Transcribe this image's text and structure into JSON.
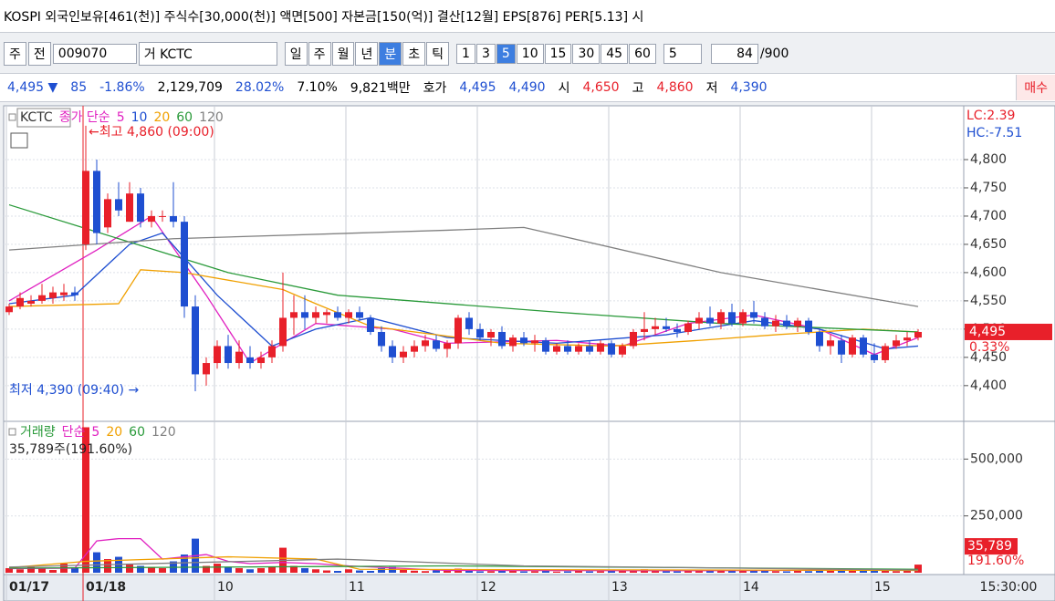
{
  "header": {
    "title": "KOSPI 외국인보유[461(천)] 주식수[30,000(천)] 액면[500] 자본금[150(억)] 결산[12월] EPS[876] PER[5.13] 시"
  },
  "toolbar": {
    "period": "주",
    "prev": "전",
    "code": "009070",
    "name": "거 KCTC",
    "units": [
      "일",
      "주",
      "월",
      "년",
      "분",
      "초",
      "틱"
    ],
    "minutes": [
      "1",
      "3",
      "5",
      "10",
      "15",
      "30",
      "45",
      "60"
    ],
    "step": "5",
    "count": "84",
    "total": "/900"
  },
  "quote": {
    "price": "4,495 ▼",
    "change": "85",
    "change_pct": "-1.86%",
    "volume": "2,129,709",
    "turnover": "28.02%",
    "ratio": "7.10%",
    "amount": "9,821백만",
    "bid_label": "호가",
    "ask": "4,495",
    "bid": "4,490",
    "open_label": "시",
    "open": "4,650",
    "high_label": "고",
    "high": "4,860",
    "low_label": "저",
    "low": "4,390",
    "buy": "매수"
  },
  "chart_data": [
    {
      "type": "candlestick",
      "name": "KCTC",
      "indicator": "종가 단순",
      "open": [
        4530,
        4540,
        4545,
        4550,
        4555,
        4560,
        4565,
        4650,
        4780,
        4680,
        4730,
        4690,
        4740,
        4690,
        4700,
        4700,
        4690,
        4540,
        4420,
        4440,
        4470,
        4440,
        4450,
        4440,
        4450,
        4470,
        4520,
        4530,
        4520,
        4525,
        4530,
        4520,
        4530,
        4520,
        4495,
        4470,
        4450,
        4460,
        4470,
        4480,
        4465,
        4475,
        4520,
        4500,
        4485,
        4495,
        4470,
        4485,
        4475,
        4480,
        4460,
        4470,
        4460,
        4470,
        4460,
        4475,
        4455,
        4470,
        4495,
        4500,
        4505,
        4500,
        4495,
        4510,
        4520,
        4510,
        4530,
        4510,
        4530,
        4520,
        4505,
        4515,
        4505,
        4515,
        4495,
        4470,
        4480,
        4455,
        4485,
        4455,
        4445,
        4470,
        4480,
        4485
      ],
      "high": [
        4545,
        4565,
        4560,
        4580,
        4575,
        4580,
        4575,
        4860,
        4800,
        4740,
        4760,
        4760,
        4750,
        4710,
        4710,
        4760,
        4700,
        4560,
        4450,
        4480,
        4490,
        4480,
        4470,
        4460,
        4480,
        4600,
        4560,
        4560,
        4540,
        4535,
        4540,
        4535,
        4540,
        4525,
        4505,
        4480,
        4470,
        4480,
        4490,
        4490,
        4480,
        4525,
        4530,
        4510,
        4500,
        4505,
        4490,
        4495,
        4490,
        4485,
        4475,
        4480,
        4475,
        4480,
        4480,
        4480,
        4475,
        4500,
        4530,
        4520,
        4520,
        4510,
        4515,
        4530,
        4540,
        4535,
        4545,
        4535,
        4550,
        4530,
        4525,
        4525,
        4520,
        4520,
        4500,
        4490,
        4490,
        4490,
        4490,
        4475,
        4475,
        4490,
        4495,
        4500
      ],
      "low": [
        4525,
        4535,
        4540,
        4545,
        4545,
        4550,
        4550,
        4640,
        4650,
        4670,
        4700,
        4690,
        4680,
        4680,
        4690,
        4680,
        4520,
        4390,
        4400,
        4430,
        4430,
        4430,
        4430,
        4430,
        4440,
        4460,
        4490,
        4500,
        4510,
        4510,
        4515,
        4510,
        4515,
        4490,
        4460,
        4440,
        4440,
        4450,
        4460,
        4460,
        4450,
        4465,
        4490,
        4480,
        4470,
        4465,
        4460,
        4470,
        4460,
        4455,
        4455,
        4455,
        4455,
        4455,
        4455,
        4450,
        4450,
        4465,
        4480,
        4490,
        4495,
        4485,
        4490,
        4500,
        4505,
        4500,
        4505,
        4505,
        4510,
        4500,
        4495,
        4500,
        4495,
        4490,
        4460,
        4455,
        4440,
        4450,
        4450,
        4440,
        4440,
        4465,
        4470,
        4480
      ],
      "close": [
        4540,
        4555,
        4550,
        4560,
        4565,
        4565,
        4560,
        4780,
        4670,
        4730,
        4710,
        4740,
        4690,
        4700,
        4700,
        4690,
        4540,
        4420,
        4440,
        4470,
        4440,
        4460,
        4440,
        4450,
        4470,
        4520,
        4530,
        4520,
        4530,
        4530,
        4520,
        4530,
        4520,
        4495,
        4470,
        4450,
        4460,
        4470,
        4480,
        4465,
        4475,
        4520,
        4500,
        4485,
        4495,
        4470,
        4485,
        4475,
        4480,
        4460,
        4470,
        4460,
        4470,
        4460,
        4475,
        4455,
        4470,
        4495,
        4500,
        4505,
        4500,
        4495,
        4510,
        4520,
        4510,
        4530,
        4510,
        4530,
        4520,
        4505,
        4515,
        4505,
        4515,
        4495,
        4470,
        4480,
        4455,
        4485,
        4455,
        4445,
        4470,
        4480,
        4485,
        4495
      ],
      "up_color": "#e8202a",
      "down_color": "#1f4fd1",
      "ylim": [
        4340,
        4892
      ],
      "yticks": [
        {
          "value": 4400,
          "label": "4,400"
        },
        {
          "value": 4450,
          "label": "4,450"
        },
        {
          "value": 4500,
          "label": "4,500"
        },
        {
          "value": 4550,
          "label": "4,550"
        },
        {
          "value": 4600,
          "label": "4,600"
        },
        {
          "value": 4650,
          "label": "4,650"
        },
        {
          "value": 4700,
          "label": "4,700"
        },
        {
          "value": 4750,
          "label": "4,750"
        },
        {
          "value": 4800,
          "label": "4,800"
        }
      ],
      "annotations": [
        "←최고 4,860 (09:00)",
        "최저 4,390 (09:40) →"
      ],
      "side_labels": [
        "LC:2.39",
        "HC:-7.51"
      ],
      "last_label": "4,495",
      "last_pct": "0.33%",
      "series": [
        {
          "name": "5",
          "color": "#e020c0",
          "x": [
            0,
            8,
            13,
            18,
            22,
            28,
            35,
            40,
            50,
            56,
            62,
            68,
            74,
            79,
            83
          ],
          "values": [
            4550,
            4640,
            4700,
            4560,
            4440,
            4510,
            4500,
            4475,
            4480,
            4470,
            4510,
            4525,
            4500,
            4455,
            4485
          ]
        },
        {
          "name": "10",
          "color": "#1f4fd1",
          "x": [
            0,
            6,
            11,
            14,
            19,
            24,
            28,
            33,
            40,
            50,
            60,
            68,
            74,
            80,
            83
          ],
          "values": [
            4545,
            4560,
            4650,
            4670,
            4560,
            4470,
            4500,
            4520,
            4485,
            4475,
            4490,
            4515,
            4500,
            4465,
            4470
          ]
        },
        {
          "name": "20",
          "color": "#f0a000",
          "x": [
            0,
            10,
            12,
            16,
            25,
            28,
            33,
            45,
            55,
            63,
            70,
            78,
            83
          ],
          "values": [
            4540,
            4545,
            4605,
            4600,
            4570,
            4545,
            4505,
            4475,
            4470,
            4480,
            4490,
            4500,
            4495
          ]
        },
        {
          "name": "60",
          "color": "#2a9a3a",
          "x": [
            0,
            10,
            20,
            30,
            50,
            65,
            83
          ],
          "values": [
            4720,
            4660,
            4600,
            4560,
            4530,
            4510,
            4495
          ]
        },
        {
          "name": "120",
          "color": "#808080",
          "x": [
            0,
            15,
            40,
            47,
            65,
            83
          ],
          "values": [
            4640,
            4660,
            4675,
            4680,
            4600,
            4540
          ]
        }
      ]
    },
    {
      "type": "bar",
      "name": "거래량",
      "indicator": "단순",
      "categories": [
        "01/17",
        null,
        null,
        null,
        null,
        null,
        null,
        "01/18",
        null,
        null,
        null,
        null,
        null,
        null,
        null,
        null,
        null,
        null,
        null,
        "10",
        null,
        null,
        null,
        null,
        null,
        null,
        null,
        null,
        null,
        null,
        null,
        "11",
        null,
        null,
        null,
        null,
        null,
        null,
        null,
        null,
        null,
        null,
        null,
        "12",
        null,
        null,
        null,
        null,
        null,
        null,
        null,
        null,
        null,
        null,
        null,
        "13",
        null,
        null,
        null,
        null,
        null,
        null,
        null,
        null,
        null,
        null,
        null,
        "14",
        null,
        null,
        null,
        null,
        null,
        null,
        null,
        null,
        null,
        null,
        null,
        "15",
        null,
        null,
        null,
        null
      ],
      "values": [
        20000,
        15000,
        25000,
        18000,
        12000,
        40000,
        20000,
        640000,
        90000,
        60000,
        70000,
        40000,
        30000,
        25000,
        20000,
        50000,
        80000,
        150000,
        30000,
        40000,
        25000,
        20000,
        15000,
        20000,
        25000,
        110000,
        30000,
        20000,
        15000,
        10000,
        8000,
        15000,
        10000,
        8000,
        20000,
        25000,
        12000,
        9000,
        7000,
        10000,
        8000,
        18000,
        9000,
        6000,
        7000,
        12000,
        8000,
        6000,
        7000,
        9000,
        5000,
        6000,
        8000,
        6000,
        7000,
        10000,
        8000,
        12000,
        15000,
        9000,
        7000,
        6000,
        8000,
        10000,
        9000,
        12000,
        10000,
        9000,
        14000,
        8000,
        7000,
        6000,
        8000,
        7000,
        12000,
        9000,
        15000,
        11000,
        9000,
        10000,
        8000,
        7000,
        9000,
        35789
      ],
      "ylim": [
        0,
        650000
      ],
      "yticks": [
        {
          "value": 250000,
          "label": "250,000"
        },
        {
          "value": 500000,
          "label": "500,000"
        }
      ],
      "info": "35,789주(191.60%)",
      "last_label": "35,789",
      "last_pct": "191.60%",
      "time": "15:30:00",
      "series": [
        {
          "name": "5",
          "color": "#e020c0",
          "x": [
            0,
            6,
            8,
            10,
            12,
            14,
            16,
            18,
            20,
            22,
            25,
            28,
            31,
            40,
            60,
            83
          ],
          "values": [
            18000,
            20000,
            140000,
            150000,
            150000,
            60000,
            70000,
            80000,
            50000,
            40000,
            45000,
            40000,
            30000,
            10000,
            9000,
            12000
          ]
        },
        {
          "name": "20",
          "color": "#f0a000",
          "x": [
            0,
            7,
            20,
            28,
            32,
            83
          ],
          "values": [
            22000,
            50000,
            70000,
            60000,
            15000,
            10000
          ]
        },
        {
          "name": "60",
          "color": "#2a9a3a",
          "x": [
            0,
            40,
            83
          ],
          "values": [
            20000,
            30000,
            15000
          ]
        },
        {
          "name": "120",
          "color": "#808080",
          "x": [
            0,
            30,
            47,
            83
          ],
          "values": [
            25000,
            60000,
            30000,
            12000
          ]
        }
      ]
    }
  ]
}
